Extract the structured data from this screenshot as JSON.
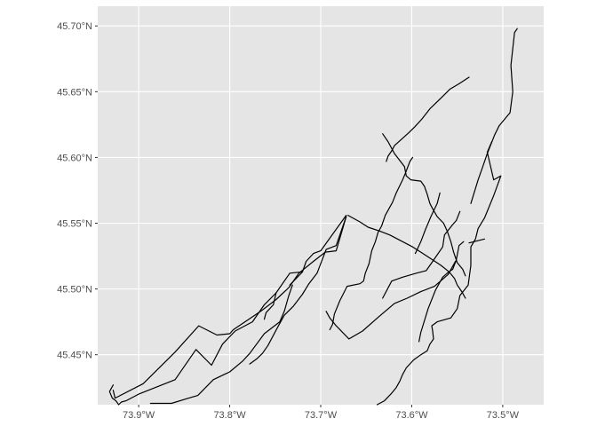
{
  "colors": {
    "panel_background": "#e5e5e5",
    "grid_line": "#ffffff",
    "route_line": "#000000",
    "tick_text": "#4d4d4d",
    "page_background": "#ffffff"
  },
  "map": {
    "projection": "longitude/latitude (degrees)",
    "lon_range": [
      -73.945,
      -73.455
    ],
    "lat_range": [
      45.412,
      45.715
    ],
    "x_ticks": [
      {
        "value": -73.9,
        "label": "73.9°W"
      },
      {
        "value": -73.8,
        "label": "73.8°W"
      },
      {
        "value": -73.7,
        "label": "73.7°W"
      },
      {
        "value": -73.6,
        "label": "73.6°W"
      },
      {
        "value": -73.5,
        "label": "73.5°W"
      }
    ],
    "y_ticks": [
      {
        "value": 45.45,
        "label": "45.45°N"
      },
      {
        "value": 45.5,
        "label": "45.50°N"
      },
      {
        "value": 45.55,
        "label": "45.55°N"
      },
      {
        "value": 45.6,
        "label": "45.60°N"
      },
      {
        "value": 45.65,
        "label": "45.65°N"
      },
      {
        "value": 45.7,
        "label": "45.70°N"
      }
    ],
    "routes": [
      {
        "id": "r1",
        "coords": [
          [
            -73.484,
            45.698
          ],
          [
            -73.487,
            45.695
          ],
          [
            -73.491,
            45.67
          ],
          [
            -73.489,
            45.65
          ],
          [
            -73.492,
            45.634
          ],
          [
            -73.504,
            45.624
          ],
          [
            -73.509,
            45.617
          ],
          [
            -73.517,
            45.603
          ],
          [
            -73.522,
            45.593
          ],
          [
            -73.527,
            45.583
          ],
          [
            -73.535,
            45.565
          ]
        ]
      },
      {
        "id": "r2",
        "coords": [
          [
            -73.537,
            45.661
          ],
          [
            -73.548,
            45.656
          ],
          [
            -73.558,
            45.652
          ],
          [
            -73.568,
            45.645
          ],
          [
            -73.58,
            45.637
          ],
          [
            -73.589,
            45.629
          ],
          [
            -73.597,
            45.623
          ],
          [
            -73.603,
            45.619
          ],
          [
            -73.611,
            45.614
          ],
          [
            -73.619,
            45.609
          ],
          [
            -73.622,
            45.605
          ],
          [
            -73.626,
            45.601
          ],
          [
            -73.628,
            45.597
          ]
        ]
      },
      {
        "id": "r3",
        "coords": [
          [
            -73.632,
            45.618
          ],
          [
            -73.626,
            45.612
          ],
          [
            -73.619,
            45.603
          ],
          [
            -73.608,
            45.593
          ],
          [
            -73.606,
            45.586
          ],
          [
            -73.601,
            45.583
          ],
          [
            -73.59,
            45.582
          ],
          [
            -73.586,
            45.578
          ],
          [
            -73.583,
            45.572
          ],
          [
            -73.58,
            45.565
          ],
          [
            -73.577,
            45.561
          ],
          [
            -73.572,
            45.555
          ],
          [
            -73.565,
            45.55
          ],
          [
            -73.561,
            45.544
          ],
          [
            -73.557,
            45.536
          ],
          [
            -73.554,
            45.528
          ],
          [
            -73.55,
            45.52
          ],
          [
            -73.544,
            45.515
          ],
          [
            -73.541,
            45.51
          ]
        ]
      },
      {
        "id": "r4",
        "coords": [
          [
            -73.599,
            45.6
          ],
          [
            -73.602,
            45.597
          ],
          [
            -73.607,
            45.588
          ],
          [
            -73.61,
            45.583
          ],
          [
            -73.617,
            45.573
          ],
          [
            -73.621,
            45.566
          ],
          [
            -73.629,
            45.556
          ],
          [
            -73.633,
            45.548
          ],
          [
            -73.637,
            45.543
          ],
          [
            -73.64,
            45.536
          ],
          [
            -73.644,
            45.529
          ],
          [
            -73.647,
            45.519
          ],
          [
            -73.651,
            45.512
          ],
          [
            -73.653,
            45.506
          ],
          [
            -73.657,
            45.504
          ],
          [
            -73.671,
            45.502
          ],
          [
            -73.679,
            45.491
          ],
          [
            -73.685,
            45.481
          ],
          [
            -73.687,
            45.473
          ],
          [
            -73.69,
            45.469
          ]
        ]
      },
      {
        "id": "r5",
        "coords": [
          [
            -73.512,
            45.612
          ],
          [
            -73.517,
            45.604
          ],
          [
            -73.51,
            45.583
          ],
          [
            -73.502,
            45.586
          ],
          [
            -73.51,
            45.571
          ],
          [
            -73.52,
            45.554
          ],
          [
            -73.527,
            45.546
          ],
          [
            -73.53,
            45.538
          ],
          [
            -73.535,
            45.532
          ],
          [
            -73.535,
            45.518
          ],
          [
            -73.538,
            45.503
          ],
          [
            -73.547,
            45.495
          ],
          [
            -73.55,
            45.485
          ],
          [
            -73.557,
            45.478
          ],
          [
            -73.572,
            45.475
          ],
          [
            -73.578,
            45.472
          ],
          [
            -73.577,
            45.468
          ],
          [
            -73.576,
            45.462
          ],
          [
            -73.58,
            45.458
          ],
          [
            -73.583,
            45.453
          ],
          [
            -73.59,
            45.45
          ],
          [
            -73.598,
            45.446
          ],
          [
            -73.606,
            45.44
          ],
          [
            -73.61,
            45.435
          ],
          [
            -73.613,
            45.43
          ],
          [
            -73.617,
            45.425
          ],
          [
            -73.623,
            45.42
          ],
          [
            -73.63,
            45.415
          ],
          [
            -73.638,
            45.412
          ]
        ]
      },
      {
        "id": "r6",
        "coords": [
          [
            -73.537,
            45.535
          ],
          [
            -73.52,
            45.538
          ]
        ]
      },
      {
        "id": "r7",
        "coords": [
          [
            -73.569,
            45.573
          ],
          [
            -73.572,
            45.565
          ],
          [
            -73.579,
            45.555
          ],
          [
            -73.585,
            45.545
          ],
          [
            -73.59,
            45.536
          ],
          [
            -73.596,
            45.527
          ]
        ]
      },
      {
        "id": "r8",
        "coords": [
          [
            -73.67,
            45.556
          ],
          [
            -73.657,
            45.551
          ],
          [
            -73.648,
            45.547
          ],
          [
            -73.635,
            45.544
          ],
          [
            -73.624,
            45.541
          ],
          [
            -73.61,
            45.536
          ],
          [
            -73.599,
            45.532
          ],
          [
            -73.59,
            45.528
          ],
          [
            -73.579,
            45.523
          ],
          [
            -73.568,
            45.518
          ],
          [
            -73.559,
            45.513
          ],
          [
            -73.553,
            45.508
          ],
          [
            -73.55,
            45.503
          ],
          [
            -73.545,
            45.498
          ],
          [
            -73.541,
            45.493
          ]
        ]
      },
      {
        "id": "r9",
        "coords": [
          [
            -73.543,
            45.536
          ],
          [
            -73.548,
            45.533
          ],
          [
            -73.551,
            45.522
          ],
          [
            -73.555,
            45.515
          ],
          [
            -73.561,
            45.512
          ],
          [
            -73.566,
            45.509
          ],
          [
            -73.574,
            45.499
          ],
          [
            -73.582,
            45.485
          ],
          [
            -73.586,
            45.476
          ],
          [
            -73.59,
            45.467
          ],
          [
            -73.592,
            45.46
          ]
        ]
      },
      {
        "id": "r10",
        "coords": [
          [
            -73.547,
            45.559
          ],
          [
            -73.551,
            45.552
          ],
          [
            -73.555,
            45.549
          ],
          [
            -73.564,
            45.541
          ],
          [
            -73.566,
            45.532
          ],
          [
            -73.573,
            45.525
          ],
          [
            -73.578,
            45.52
          ],
          [
            -73.584,
            45.514
          ],
          [
            -73.595,
            45.512
          ],
          [
            -73.61,
            45.509
          ],
          [
            -73.622,
            45.506
          ],
          [
            -73.632,
            45.493
          ]
        ]
      },
      {
        "id": "r11",
        "coords": [
          [
            -73.672,
            45.555
          ],
          [
            -73.683,
            45.529
          ],
          [
            -73.695,
            45.528
          ],
          [
            -73.708,
            45.521
          ],
          [
            -73.724,
            45.512
          ],
          [
            -73.735,
            45.501
          ],
          [
            -73.749,
            45.492
          ],
          [
            -73.766,
            45.483
          ],
          [
            -73.796,
            45.469
          ],
          [
            -73.8,
            45.466
          ],
          [
            -73.814,
            45.465
          ],
          [
            -73.834,
            45.472
          ],
          [
            -73.86,
            45.452
          ],
          [
            -73.895,
            45.428
          ],
          [
            -73.926,
            45.417
          ],
          [
            -73.928,
            45.423
          ]
        ]
      },
      {
        "id": "r12",
        "coords": [
          [
            -73.672,
            45.556
          ],
          [
            -73.7,
            45.529
          ],
          [
            -73.708,
            45.527
          ],
          [
            -73.716,
            45.521
          ],
          [
            -73.72,
            45.513
          ],
          [
            -73.734,
            45.512
          ],
          [
            -73.749,
            45.497
          ],
          [
            -73.762,
            45.488
          ],
          [
            -73.775,
            45.475
          ],
          [
            -73.794,
            45.468
          ],
          [
            -73.808,
            45.458
          ],
          [
            -73.82,
            45.442
          ],
          [
            -73.837,
            45.454
          ],
          [
            -73.86,
            45.431
          ],
          [
            -73.9,
            45.42
          ],
          [
            -73.914,
            45.415
          ],
          [
            -73.919,
            45.414
          ],
          [
            -73.922,
            45.412
          ],
          [
            -73.925,
            45.415
          ],
          [
            -73.929,
            45.417
          ],
          [
            -73.932,
            45.422
          ],
          [
            -73.928,
            45.427
          ]
        ]
      },
      {
        "id": "r13",
        "coords": [
          [
            -73.749,
            45.497
          ],
          [
            -73.752,
            45.488
          ],
          [
            -73.76,
            45.482
          ],
          [
            -73.762,
            45.477
          ]
        ]
      },
      {
        "id": "r14",
        "coords": [
          [
            -73.731,
            45.503
          ],
          [
            -73.735,
            45.495
          ],
          [
            -73.74,
            45.483
          ],
          [
            -73.745,
            45.475
          ],
          [
            -73.762,
            45.466
          ],
          [
            -73.778,
            45.451
          ],
          [
            -73.786,
            45.445
          ],
          [
            -73.8,
            45.437
          ],
          [
            -73.818,
            45.431
          ],
          [
            -73.835,
            45.419
          ],
          [
            -73.845,
            45.417
          ],
          [
            -73.864,
            45.413
          ],
          [
            -73.887,
            45.413
          ]
        ]
      },
      {
        "id": "r15",
        "coords": [
          [
            -73.72,
            45.513
          ],
          [
            -73.734,
            45.503
          ]
        ]
      },
      {
        "id": "r16",
        "coords": [
          [
            -73.672,
            45.555
          ],
          [
            -73.683,
            45.533
          ],
          [
            -73.694,
            45.53
          ],
          [
            -73.704,
            45.512
          ],
          [
            -73.713,
            45.504
          ],
          [
            -73.72,
            45.496
          ],
          [
            -73.73,
            45.487
          ],
          [
            -73.74,
            45.48
          ],
          [
            -73.748,
            45.47
          ],
          [
            -73.758,
            45.457
          ],
          [
            -73.764,
            45.451
          ],
          [
            -73.77,
            45.447
          ],
          [
            -73.778,
            45.443
          ]
        ]
      },
      {
        "id": "r17",
        "coords": [
          [
            -73.694,
            45.483
          ],
          [
            -73.69,
            45.478
          ],
          [
            -73.683,
            45.472
          ],
          [
            -73.669,
            45.462
          ],
          [
            -73.654,
            45.468
          ],
          [
            -73.636,
            45.479
          ],
          [
            -73.619,
            45.489
          ],
          [
            -73.605,
            45.493
          ],
          [
            -73.59,
            45.498
          ],
          [
            -73.575,
            45.502
          ],
          [
            -73.56,
            45.511
          ],
          [
            -73.552,
            45.521
          ]
        ]
      }
    ]
  }
}
